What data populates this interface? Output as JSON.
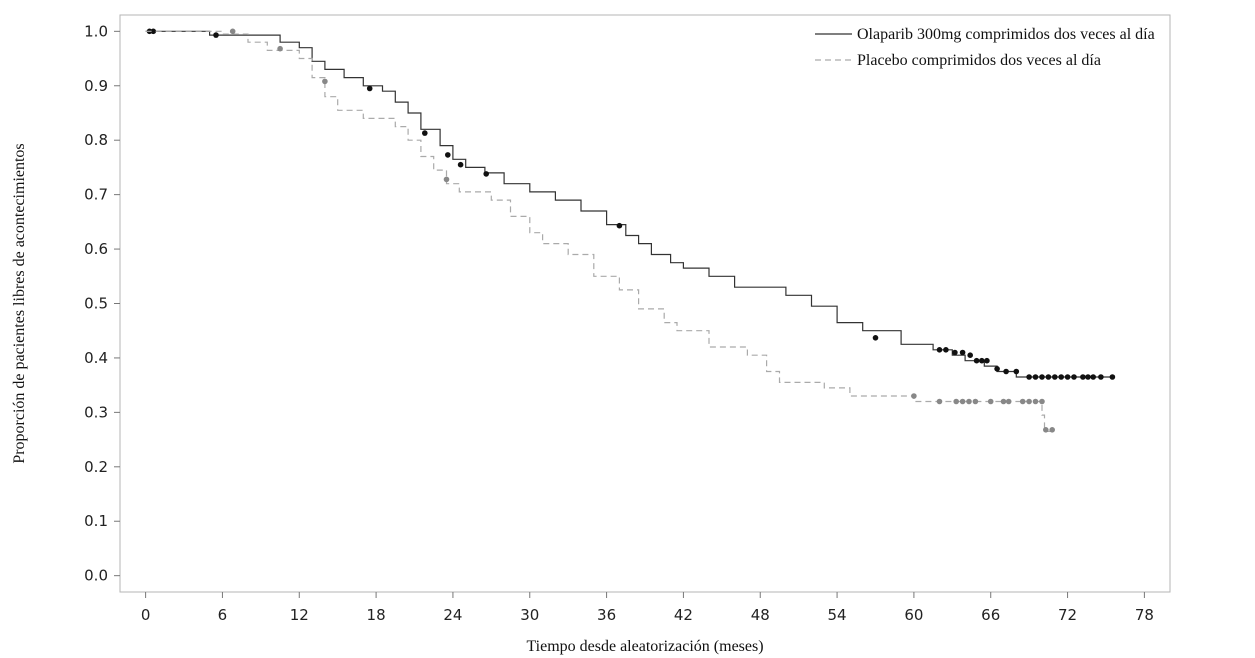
{
  "chart_data": {
    "type": "line",
    "title": "",
    "xlabel": "Tiempo desde aleatorización (meses)",
    "ylabel": "Proporción de pacientes libres de acontecimientos",
    "xlim": [
      -2,
      80
    ],
    "ylim": [
      -0.03,
      1.03
    ],
    "xticks": [
      0,
      6,
      12,
      18,
      24,
      30,
      36,
      42,
      48,
      54,
      60,
      66,
      72,
      78
    ],
    "yticks": [
      0.0,
      0.1,
      0.2,
      0.3,
      0.4,
      0.5,
      0.6,
      0.7,
      0.8,
      0.9,
      1.0
    ],
    "ytick_labels": [
      "0.0",
      "0.1",
      "0.2",
      "0.3",
      "0.4",
      "0.5",
      "0.6",
      "0.7",
      "0.8",
      "0.9",
      "1.0"
    ],
    "grid": false,
    "legend": "top-right",
    "series": [
      {
        "name": "Olaparib 300mg comprimidos dos veces al día",
        "color": "#333333",
        "style": "solid",
        "steps": [
          [
            0,
            1.0
          ],
          [
            5,
            0.993
          ],
          [
            6,
            0.993
          ],
          [
            10.5,
            0.98
          ],
          [
            12,
            0.97
          ],
          [
            13,
            0.945
          ],
          [
            14,
            0.93
          ],
          [
            15.5,
            0.915
          ],
          [
            17,
            0.9
          ],
          [
            18.5,
            0.89
          ],
          [
            19.5,
            0.87
          ],
          [
            20.5,
            0.85
          ],
          [
            21.5,
            0.82
          ],
          [
            23,
            0.79
          ],
          [
            24,
            0.765
          ],
          [
            25,
            0.75
          ],
          [
            26.5,
            0.74
          ],
          [
            28,
            0.72
          ],
          [
            30,
            0.705
          ],
          [
            32,
            0.69
          ],
          [
            34,
            0.67
          ],
          [
            36,
            0.645
          ],
          [
            37.5,
            0.625
          ],
          [
            38.5,
            0.61
          ],
          [
            39.5,
            0.59
          ],
          [
            41,
            0.575
          ],
          [
            42,
            0.565
          ],
          [
            44,
            0.55
          ],
          [
            46,
            0.53
          ],
          [
            50,
            0.515
          ],
          [
            52,
            0.495
          ],
          [
            54,
            0.465
          ],
          [
            56,
            0.45
          ],
          [
            59,
            0.425
          ],
          [
            61.5,
            0.415
          ],
          [
            63,
            0.405
          ],
          [
            64,
            0.395
          ],
          [
            65.5,
            0.385
          ],
          [
            66.5,
            0.375
          ],
          [
            68,
            0.365
          ],
          [
            75.5,
            0.365
          ]
        ],
        "censored": [
          [
            0.3,
            1.0
          ],
          [
            0.6,
            1.0
          ],
          [
            5.5,
            0.993
          ],
          [
            17.5,
            0.895
          ],
          [
            21.8,
            0.813
          ],
          [
            23.6,
            0.773
          ],
          [
            24.6,
            0.755
          ],
          [
            26.6,
            0.738
          ],
          [
            37,
            0.643
          ],
          [
            57,
            0.437
          ],
          [
            62,
            0.415
          ],
          [
            62.5,
            0.415
          ],
          [
            63.2,
            0.41
          ],
          [
            63.8,
            0.41
          ],
          [
            64.4,
            0.405
          ],
          [
            64.9,
            0.395
          ],
          [
            65.3,
            0.395
          ],
          [
            65.7,
            0.395
          ],
          [
            66.5,
            0.38
          ],
          [
            67.2,
            0.375
          ],
          [
            68,
            0.375
          ],
          [
            69,
            0.365
          ],
          [
            69.5,
            0.365
          ],
          [
            70,
            0.365
          ],
          [
            70.5,
            0.365
          ],
          [
            71,
            0.365
          ],
          [
            71.5,
            0.365
          ],
          [
            72,
            0.365
          ],
          [
            72.5,
            0.365
          ],
          [
            73.2,
            0.365
          ],
          [
            73.6,
            0.365
          ],
          [
            74,
            0.365
          ],
          [
            74.6,
            0.365
          ],
          [
            75.5,
            0.365
          ]
        ]
      },
      {
        "name": "Placebo comprimidos dos veces al día",
        "color": "#aaaaaa",
        "style": "dashed",
        "steps": [
          [
            0,
            1.0
          ],
          [
            6,
            0.995
          ],
          [
            8,
            0.98
          ],
          [
            9.5,
            0.965
          ],
          [
            12,
            0.95
          ],
          [
            13,
            0.915
          ],
          [
            14,
            0.88
          ],
          [
            15,
            0.855
          ],
          [
            17,
            0.84
          ],
          [
            19.5,
            0.825
          ],
          [
            20.5,
            0.8
          ],
          [
            21.5,
            0.77
          ],
          [
            22.5,
            0.745
          ],
          [
            23.5,
            0.72
          ],
          [
            24.5,
            0.705
          ],
          [
            27,
            0.69
          ],
          [
            28.5,
            0.66
          ],
          [
            30,
            0.63
          ],
          [
            31,
            0.61
          ],
          [
            33,
            0.59
          ],
          [
            35,
            0.55
          ],
          [
            37,
            0.525
          ],
          [
            38.5,
            0.49
          ],
          [
            40.5,
            0.465
          ],
          [
            41.5,
            0.45
          ],
          [
            44,
            0.42
          ],
          [
            47,
            0.405
          ],
          [
            48.5,
            0.375
          ],
          [
            49.5,
            0.355
          ],
          [
            53,
            0.345
          ],
          [
            55,
            0.33
          ],
          [
            60,
            0.32
          ],
          [
            70,
            0.295
          ],
          [
            70.2,
            0.265
          ],
          [
            71,
            0.265
          ]
        ],
        "censored": [
          [
            6.8,
            1.0
          ],
          [
            10.5,
            0.968
          ],
          [
            14,
            0.908
          ],
          [
            23.5,
            0.728
          ],
          [
            60,
            0.33
          ],
          [
            62,
            0.32
          ],
          [
            63.3,
            0.32
          ],
          [
            63.8,
            0.32
          ],
          [
            64.3,
            0.32
          ],
          [
            64.8,
            0.32
          ],
          [
            66,
            0.32
          ],
          [
            67,
            0.32
          ],
          [
            67.4,
            0.32
          ],
          [
            68.5,
            0.32
          ],
          [
            69,
            0.32
          ],
          [
            69.5,
            0.32
          ],
          [
            70,
            0.32
          ],
          [
            70.3,
            0.268
          ],
          [
            70.8,
            0.268
          ]
        ]
      }
    ]
  }
}
